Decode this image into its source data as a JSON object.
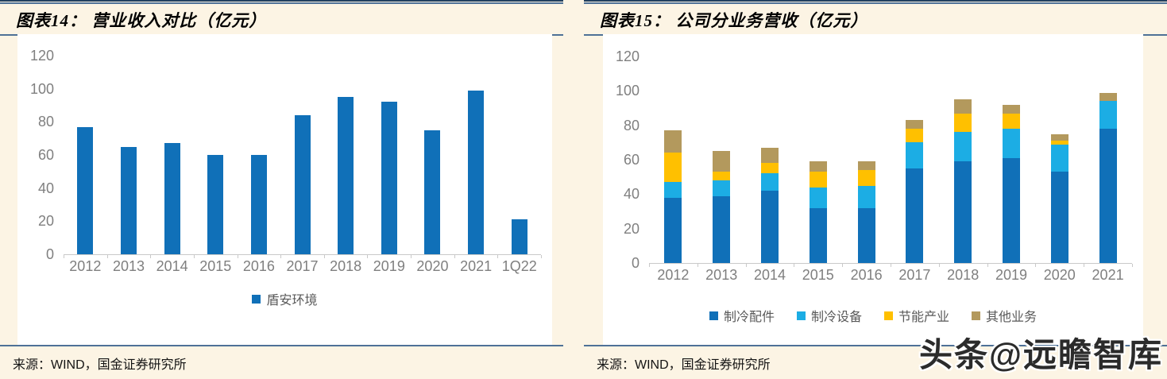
{
  "colors": {
    "background": "#FCF4E4",
    "rule_blue": "#4E7197",
    "rule_dark": "#22405F",
    "axis_gray": "#C9C9C9",
    "label_gray": "#7F7F7F",
    "legend_gray": "#595959"
  },
  "watermark": {
    "text": "头条@远瞻智库"
  },
  "charts": [
    {
      "title": "图表14： 营业收入对比（亿元）",
      "source": "来源：WIND，国金证券研究所"
    },
    {
      "title": "图表15： 公司分业务营收（亿元）",
      "source": "来源：WIND，国金证券研究所"
    }
  ],
  "chart_data": [
    {
      "type": "bar",
      "title": "图表14：营业收入对比（亿元）",
      "categories": [
        "2012",
        "2013",
        "2014",
        "2015",
        "2016",
        "2017",
        "2018",
        "2019",
        "2020",
        "2021",
        "1Q22"
      ],
      "series": [
        {
          "name": "盾安环境",
          "color": "#1070B8",
          "values": [
            77,
            65,
            67,
            60,
            60,
            84,
            95,
            92,
            75,
            99,
            21
          ]
        }
      ],
      "xlabel": "",
      "ylabel": "",
      "ylim": [
        0,
        120
      ],
      "yticks": [
        0,
        20,
        40,
        60,
        80,
        100,
        120
      ],
      "grid": false,
      "legend_position": "bottom"
    },
    {
      "type": "stacked-bar",
      "title": "图表15：公司分业务营收（亿元）",
      "categories": [
        "2012",
        "2013",
        "2014",
        "2015",
        "2016",
        "2017",
        "2018",
        "2019",
        "2020",
        "2021"
      ],
      "series": [
        {
          "name": "制冷配件",
          "color": "#1070B8",
          "values": [
            38,
            39,
            42,
            32,
            32,
            55,
            59,
            61,
            53,
            78
          ]
        },
        {
          "name": "制冷设备",
          "color": "#1CADE4",
          "values": [
            9,
            9,
            10,
            12,
            13,
            15,
            17,
            17,
            16,
            16
          ]
        },
        {
          "name": "节能产业",
          "color": "#FFC000",
          "values": [
            17,
            5,
            6,
            9,
            9,
            8,
            11,
            9,
            2,
            0
          ]
        },
        {
          "name": "其他业务",
          "color": "#B3995D",
          "values": [
            13,
            12,
            9,
            6,
            5,
            5,
            8,
            5,
            4,
            5
          ]
        }
      ],
      "xlabel": "",
      "ylabel": "",
      "ylim": [
        0,
        120
      ],
      "yticks": [
        0,
        20,
        40,
        60,
        80,
        100,
        120
      ],
      "grid": false,
      "legend_position": "bottom"
    }
  ]
}
